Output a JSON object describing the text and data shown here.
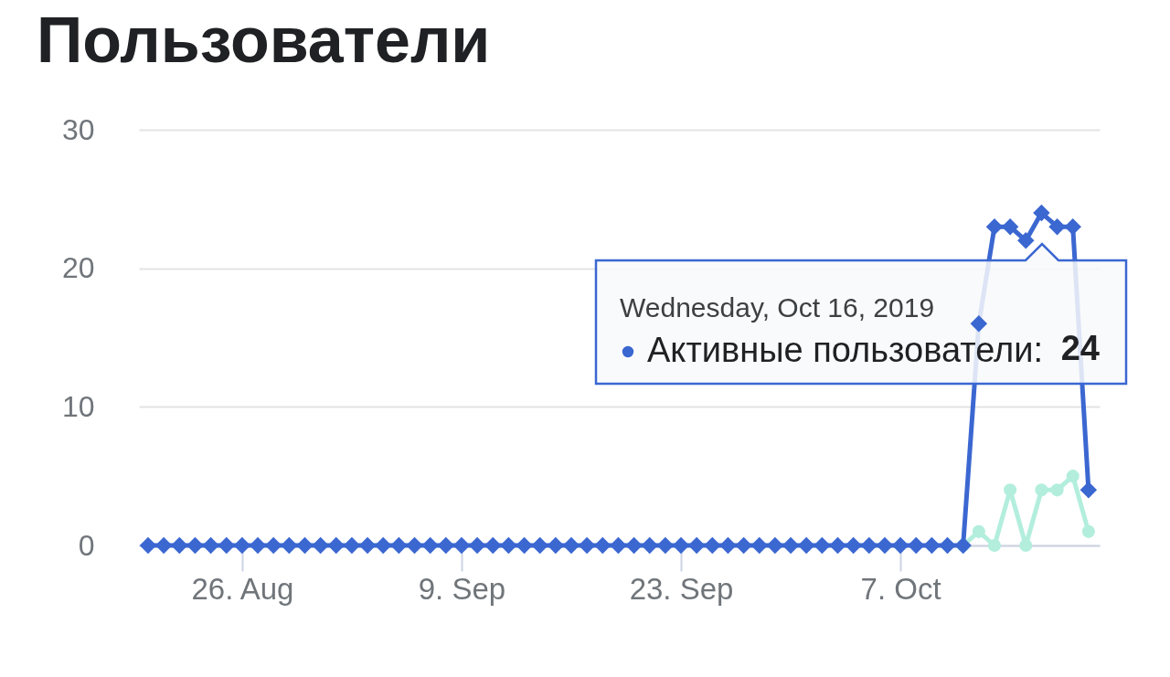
{
  "chart_data": {
    "type": "line",
    "title": "Пользователи",
    "x": [
      "2019-08-20",
      "2019-08-21",
      "2019-08-22",
      "2019-08-23",
      "2019-08-24",
      "2019-08-25",
      "2019-08-26",
      "2019-08-27",
      "2019-08-28",
      "2019-08-29",
      "2019-08-30",
      "2019-08-31",
      "2019-09-01",
      "2019-09-02",
      "2019-09-03",
      "2019-09-04",
      "2019-09-05",
      "2019-09-06",
      "2019-09-07",
      "2019-09-08",
      "2019-09-09",
      "2019-09-10",
      "2019-09-11",
      "2019-09-12",
      "2019-09-13",
      "2019-09-14",
      "2019-09-15",
      "2019-09-16",
      "2019-09-17",
      "2019-09-18",
      "2019-09-19",
      "2019-09-20",
      "2019-09-21",
      "2019-09-22",
      "2019-09-23",
      "2019-09-24",
      "2019-09-25",
      "2019-09-26",
      "2019-09-27",
      "2019-09-28",
      "2019-09-29",
      "2019-09-30",
      "2019-10-01",
      "2019-10-02",
      "2019-10-03",
      "2019-10-04",
      "2019-10-05",
      "2019-10-06",
      "2019-10-07",
      "2019-10-08",
      "2019-10-09",
      "2019-10-10",
      "2019-10-11",
      "2019-10-12",
      "2019-10-13",
      "2019-10-14",
      "2019-10-15",
      "2019-10-16",
      "2019-10-17",
      "2019-10-18",
      "2019-10-19"
    ],
    "xlim": [
      "2019-08-19T10:00",
      "2019-10-19T17:00"
    ],
    "xticks": [
      {
        "value": "2019-08-26",
        "label": "26. Aug"
      },
      {
        "value": "2019-09-09",
        "label": "9. Sep"
      },
      {
        "value": "2019-09-23",
        "label": "23. Sep"
      },
      {
        "value": "2019-10-07",
        "label": "7. Oct"
      }
    ],
    "ylim": [
      0,
      30
    ],
    "yticks": [
      0,
      10,
      20,
      30
    ],
    "grid": "y",
    "legend": "right",
    "series": [
      {
        "name": "Активные пользователи:",
        "color": "#3b67d1",
        "marker": "diamond",
        "values": [
          0,
          0,
          0,
          0,
          0,
          0,
          0,
          0,
          0,
          0,
          0,
          0,
          0,
          0,
          0,
          0,
          0,
          0,
          0,
          0,
          0,
          0,
          0,
          0,
          0,
          0,
          0,
          0,
          0,
          0,
          0,
          0,
          0,
          0,
          0,
          0,
          0,
          0,
          0,
          0,
          0,
          0,
          0,
          0,
          0,
          0,
          0,
          0,
          0,
          0,
          0,
          0,
          0,
          16,
          23,
          23,
          22,
          24,
          23,
          23,
          4
        ]
      },
      {
        "color": "#b3eedd",
        "marker": "circle",
        "values": [
          null,
          null,
          null,
          null,
          null,
          null,
          null,
          null,
          null,
          null,
          null,
          null,
          null,
          null,
          null,
          null,
          null,
          null,
          null,
          null,
          null,
          null,
          null,
          null,
          null,
          null,
          null,
          null,
          null,
          null,
          null,
          null,
          null,
          null,
          null,
          null,
          null,
          null,
          null,
          null,
          null,
          null,
          null,
          null,
          null,
          null,
          null,
          null,
          null,
          null,
          null,
          null,
          0,
          1,
          0,
          4,
          0,
          4,
          4,
          5,
          1
        ]
      }
    ],
    "annotations": [
      "Wednesday, Oct 16, 2019",
      "24"
    ]
  }
}
